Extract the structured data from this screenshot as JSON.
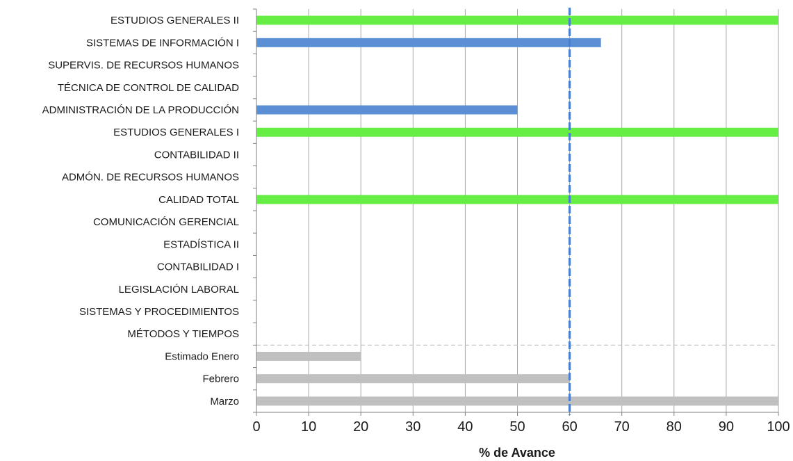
{
  "chart_data": {
    "type": "bar",
    "orientation": "horizontal",
    "xlabel": "% de Avance",
    "xlim": [
      0,
      100
    ],
    "xticks": [
      0,
      10,
      20,
      30,
      40,
      50,
      60,
      70,
      80,
      90,
      100
    ],
    "grid": "vertical",
    "reference_line": {
      "value": 60,
      "style": "dashed",
      "color": "#4a7fd0"
    },
    "colors": {
      "complete": "#66ee44",
      "in_progress": "#5a8fd6",
      "timeline": "#c0c0c0"
    },
    "categories": [
      "ESTUDIOS GENERALES II",
      "SISTEMAS DE INFORMACIÓN I",
      "SUPERVIS. DE  RECURSOS HUMANOS",
      "TÉCNICA DE CONTROL DE CALIDAD",
      "ADMINISTRACIÓN DE LA PRODUCCIÓN",
      "ESTUDIOS GENERALES I",
      "CONTABILIDAD II",
      "ADMÓN. DE RECURSOS HUMANOS",
      "CALIDAD TOTAL",
      "COMUNICACIÓN GERENCIAL",
      "ESTADÍSTICA II",
      "CONTABILIDAD I",
      "LEGISLACIÓN LABORAL",
      "SISTEMAS Y PROCEDIMIENTOS",
      "MÉTODOS Y TIEMPOS",
      "Estimado Enero",
      "Febrero",
      "Marzo"
    ],
    "values": [
      100,
      66,
      0,
      0,
      50,
      100,
      0,
      0,
      100,
      0,
      0,
      0,
      0,
      0,
      0,
      20,
      60,
      100
    ],
    "bar_colors": [
      "#66ee44",
      "#5a8fd6",
      "#5a8fd6",
      "#5a8fd6",
      "#5a8fd6",
      "#66ee44",
      "#5a8fd6",
      "#5a8fd6",
      "#66ee44",
      "#5a8fd6",
      "#5a8fd6",
      "#5a8fd6",
      "#5a8fd6",
      "#5a8fd6",
      "#5a8fd6",
      "#c0c0c0",
      "#c0c0c0",
      "#c0c0c0"
    ],
    "separator_after_index": 14
  }
}
